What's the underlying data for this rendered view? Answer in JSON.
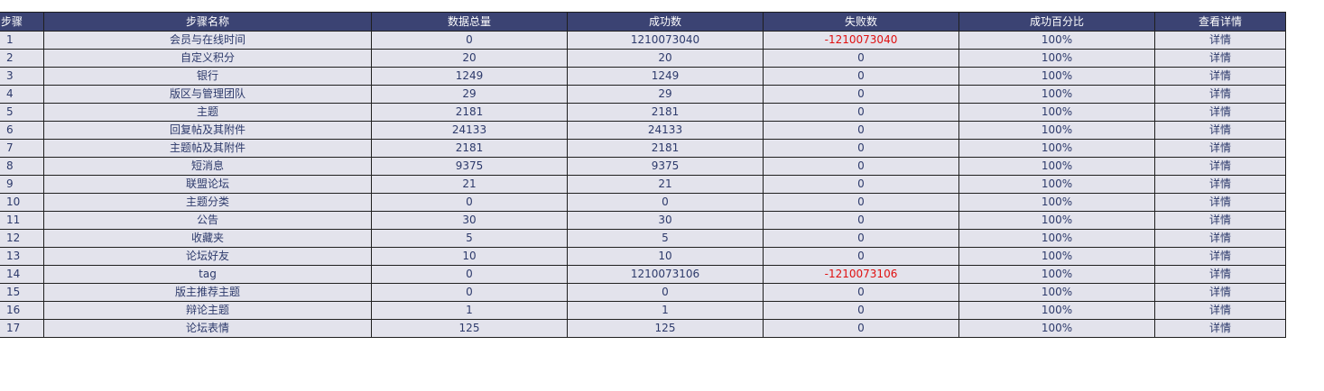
{
  "table": {
    "headers": [
      "步骤",
      "步骤名称",
      "数据总量",
      "成功数",
      "失败数",
      "成功百分比",
      "查看详情"
    ],
    "rows": [
      {
        "step": "1",
        "name": "会员与在线时间",
        "total": "0",
        "success": "1210073040",
        "failed": "-1210073040",
        "percent": "100%",
        "detail": "详情"
      },
      {
        "step": "2",
        "name": "自定义积分",
        "total": "20",
        "success": "20",
        "failed": "0",
        "percent": "100%",
        "detail": "详情"
      },
      {
        "step": "3",
        "name": "银行",
        "total": "1249",
        "success": "1249",
        "failed": "0",
        "percent": "100%",
        "detail": "详情"
      },
      {
        "step": "4",
        "name": "版区与管理团队",
        "total": "29",
        "success": "29",
        "failed": "0",
        "percent": "100%",
        "detail": "详情"
      },
      {
        "step": "5",
        "name": "主题",
        "total": "2181",
        "success": "2181",
        "failed": "0",
        "percent": "100%",
        "detail": "详情"
      },
      {
        "step": "6",
        "name": "回复帖及其附件",
        "total": "24133",
        "success": "24133",
        "failed": "0",
        "percent": "100%",
        "detail": "详情"
      },
      {
        "step": "7",
        "name": "主题帖及其附件",
        "total": "2181",
        "success": "2181",
        "failed": "0",
        "percent": "100%",
        "detail": "详情"
      },
      {
        "step": "8",
        "name": "短消息",
        "total": "9375",
        "success": "9375",
        "failed": "0",
        "percent": "100%",
        "detail": "详情"
      },
      {
        "step": "9",
        "name": "联盟论坛",
        "total": "21",
        "success": "21",
        "failed": "0",
        "percent": "100%",
        "detail": "详情"
      },
      {
        "step": "10",
        "name": "主题分类",
        "total": "0",
        "success": "0",
        "failed": "0",
        "percent": "100%",
        "detail": "详情"
      },
      {
        "step": "11",
        "name": "公告",
        "total": "30",
        "success": "30",
        "failed": "0",
        "percent": "100%",
        "detail": "详情"
      },
      {
        "step": "12",
        "name": "收藏夹",
        "total": "5",
        "success": "5",
        "failed": "0",
        "percent": "100%",
        "detail": "详情"
      },
      {
        "step": "13",
        "name": "论坛好友",
        "total": "10",
        "success": "10",
        "failed": "0",
        "percent": "100%",
        "detail": "详情"
      },
      {
        "step": "14",
        "name": "tag",
        "total": "0",
        "success": "1210073106",
        "failed": "-1210073106",
        "percent": "100%",
        "detail": "详情"
      },
      {
        "step": "15",
        "name": "版主推荐主题",
        "total": "0",
        "success": "0",
        "failed": "0",
        "percent": "100%",
        "detail": "详情"
      },
      {
        "step": "16",
        "name": "辩论主题",
        "total": "1",
        "success": "1",
        "failed": "0",
        "percent": "100%",
        "detail": "详情"
      },
      {
        "step": "17",
        "name": "论坛表情",
        "total": "125",
        "success": "125",
        "failed": "0",
        "percent": "100%",
        "detail": "详情"
      }
    ]
  },
  "colors": {
    "header_bg": "#3b4373",
    "row_bg": "#e3e3ec",
    "text": "#2d3a6b",
    "negative": "#e01010"
  }
}
